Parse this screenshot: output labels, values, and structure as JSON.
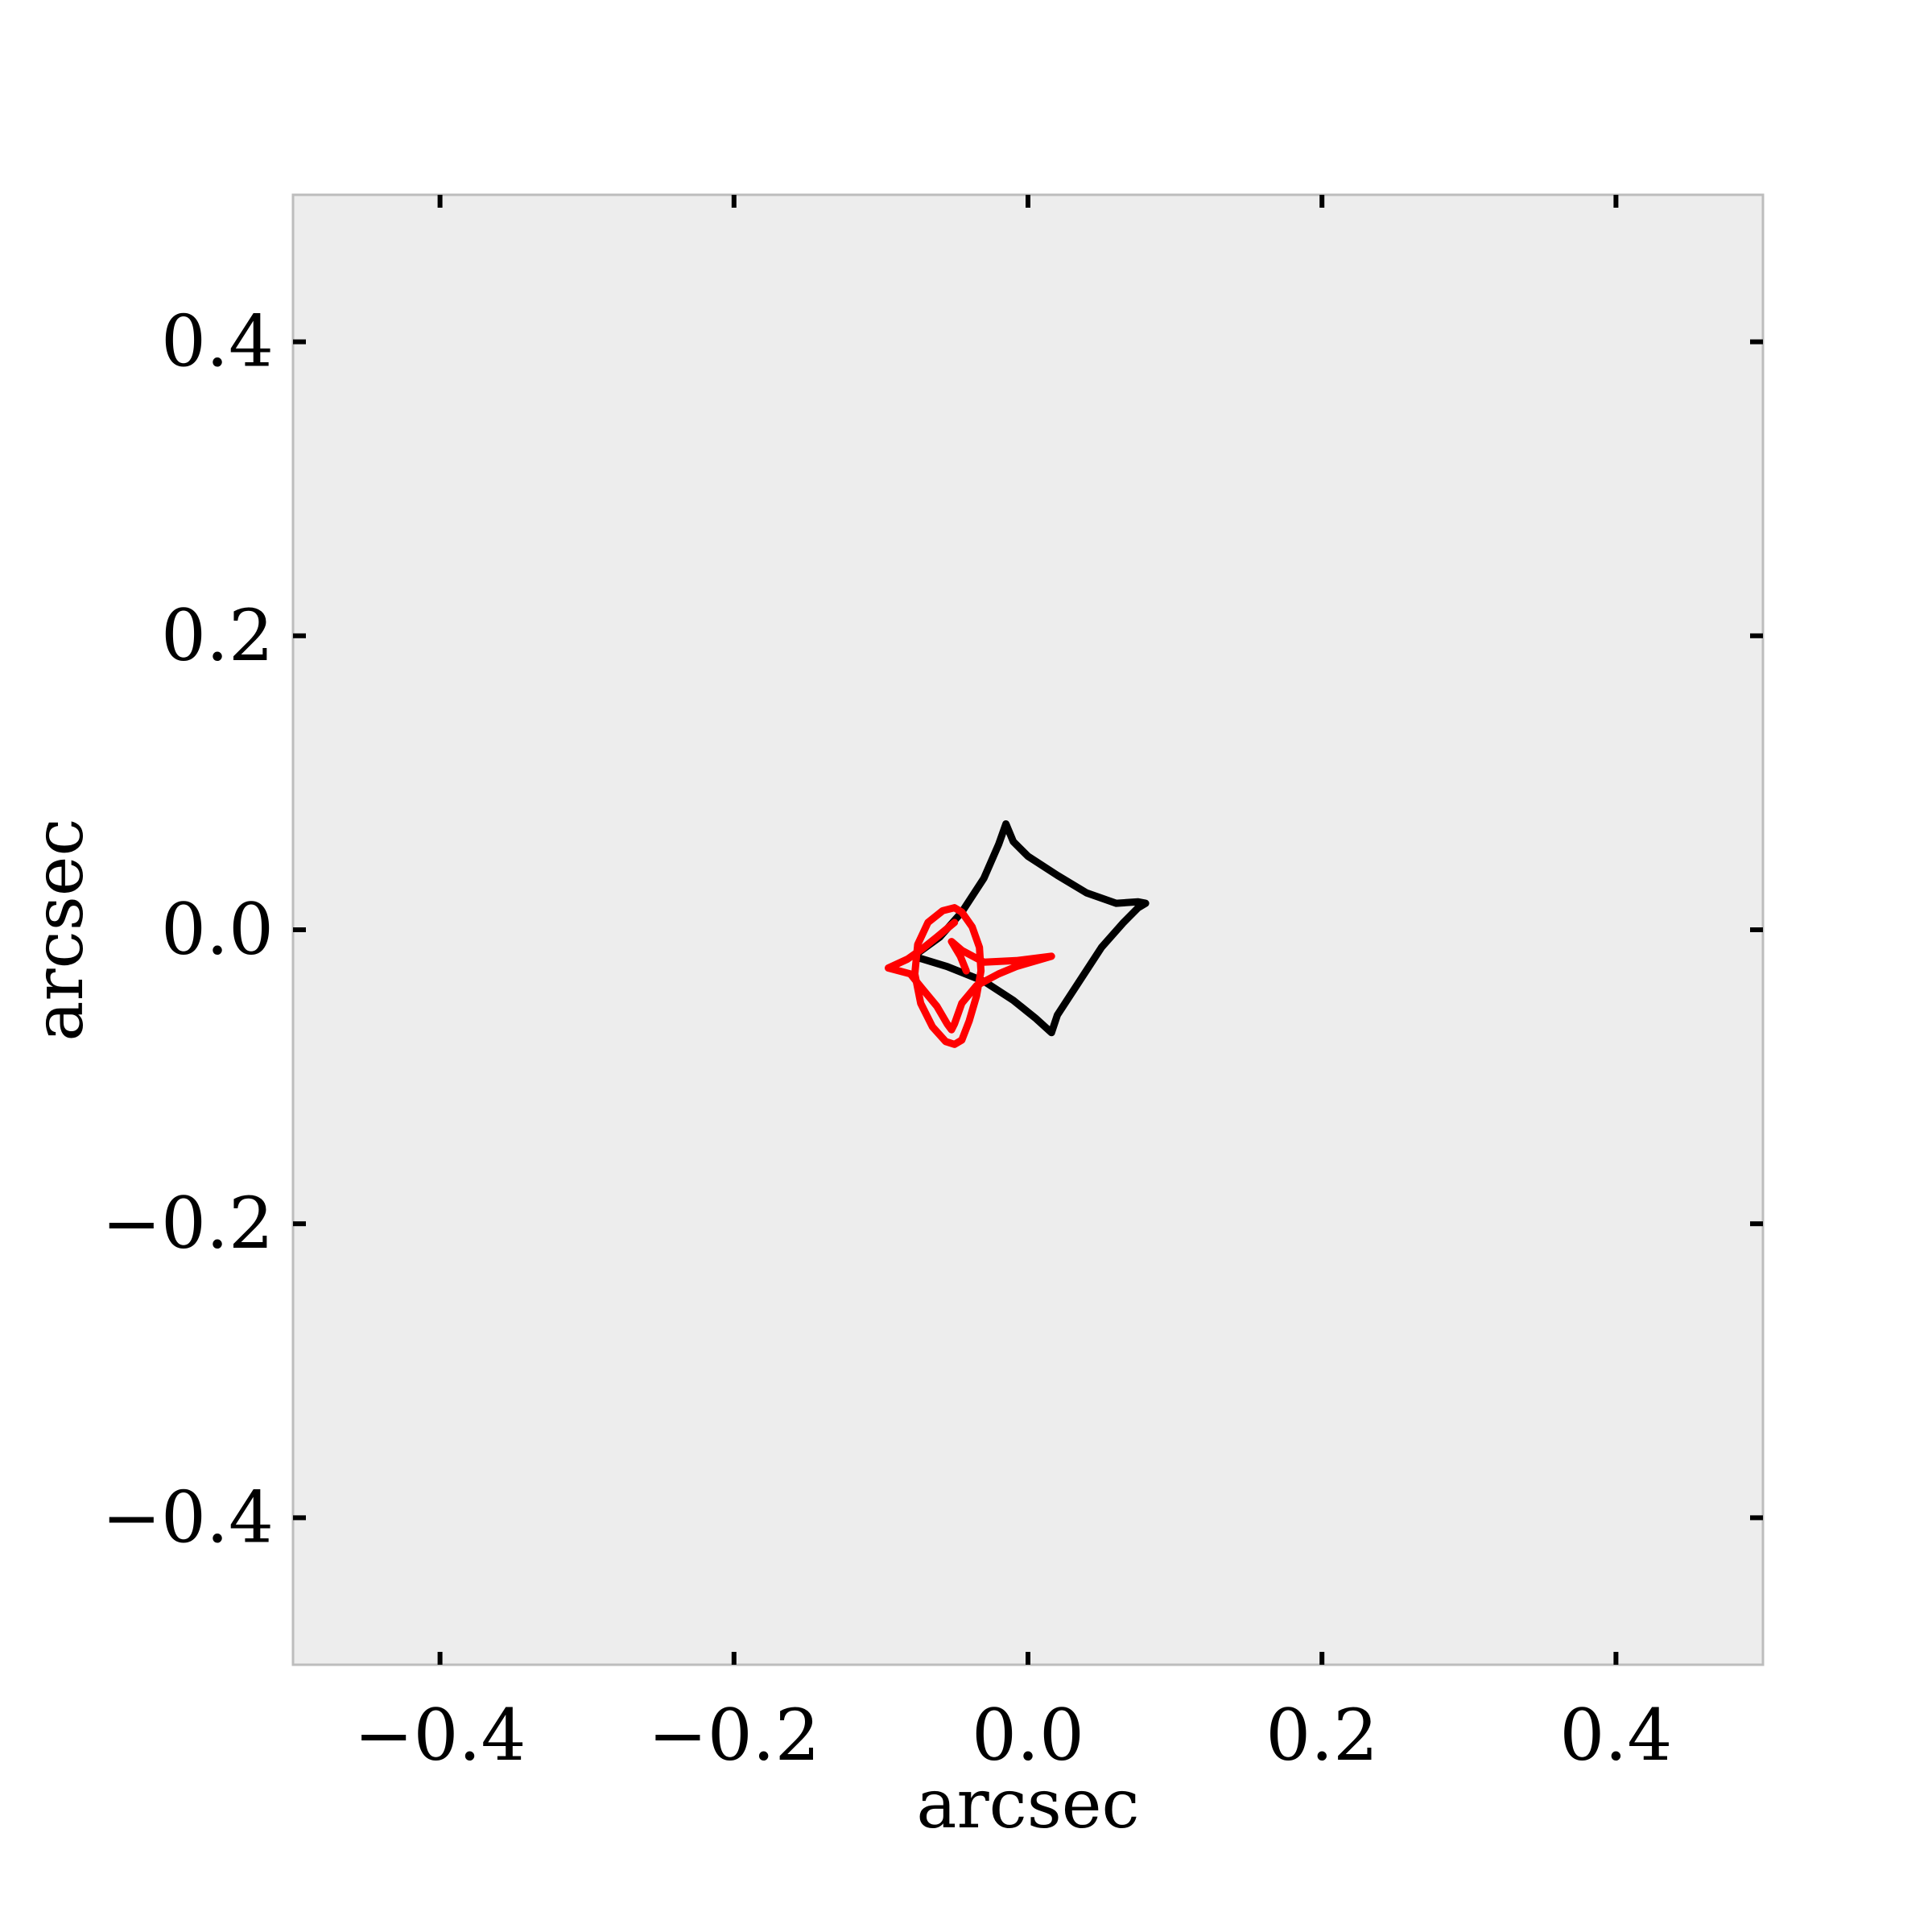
{
  "chart_data": {
    "type": "line",
    "title": "",
    "xlabel": "arcsec",
    "ylabel": "arcsec",
    "xlim": [
      -0.5,
      0.5
    ],
    "ylim": [
      -0.5,
      0.5
    ],
    "x_ticks": [
      -0.4,
      -0.2,
      0.0,
      0.2,
      0.4
    ],
    "y_ticks": [
      -0.4,
      -0.2,
      0.0,
      0.2,
      0.4
    ],
    "x_tick_labels": [
      "−0.4",
      "−0.2",
      "0.0",
      "0.2",
      "0.4"
    ],
    "y_tick_labels": [
      "−0.4",
      "−0.2",
      "0.0",
      "0.2",
      "0.4"
    ],
    "grid": false,
    "background_color": "#ededed",
    "frame_color": "#bdbdbd",
    "series": [
      {
        "color": "#000000",
        "x": [
          -0.015,
          -0.02,
          -0.03,
          -0.045,
          -0.06,
          -0.078,
          -0.055,
          -0.03,
          -0.01,
          0.005,
          0.016,
          0.02,
          0.035,
          0.05,
          0.065,
          0.075,
          0.08,
          0.075,
          0.06,
          0.04,
          0.02,
          0.0,
          -0.01,
          -0.015
        ],
        "y": [
          0.072,
          0.058,
          0.035,
          0.012,
          -0.005,
          -0.018,
          -0.025,
          -0.035,
          -0.048,
          -0.06,
          -0.07,
          -0.058,
          -0.035,
          -0.012,
          0.005,
          0.015,
          0.018,
          0.019,
          0.018,
          0.025,
          0.037,
          0.05,
          0.06,
          0.072
        ]
      },
      {
        "color": "#ff0000",
        "x": [
          -0.05,
          -0.062,
          -0.072,
          -0.082,
          -0.095,
          -0.08,
          -0.072,
          -0.062,
          -0.055,
          -0.052,
          -0.05,
          -0.045,
          -0.035,
          -0.02,
          -0.008,
          0.016,
          -0.008,
          -0.03,
          -0.045,
          -0.052,
          -0.046,
          -0.042
        ],
        "y": [
          0.005,
          -0.005,
          -0.013,
          -0.02,
          -0.026,
          -0.03,
          -0.04,
          -0.052,
          -0.064,
          -0.068,
          -0.064,
          -0.05,
          -0.038,
          -0.03,
          -0.025,
          -0.018,
          -0.021,
          -0.022,
          -0.014,
          -0.008,
          -0.018,
          -0.028
        ]
      },
      {
        "color": "#ff0000",
        "x": [
          -0.05,
          -0.058,
          -0.068,
          -0.075,
          -0.077,
          -0.073,
          -0.065,
          -0.056,
          -0.05,
          -0.045,
          -0.04,
          -0.035,
          -0.032,
          -0.033,
          -0.038,
          -0.045,
          -0.05
        ],
        "y": [
          0.015,
          0.013,
          0.005,
          -0.01,
          -0.03,
          -0.05,
          -0.066,
          -0.076,
          -0.078,
          -0.075,
          -0.062,
          -0.045,
          -0.028,
          -0.012,
          0.002,
          0.012,
          0.015
        ]
      }
    ]
  }
}
